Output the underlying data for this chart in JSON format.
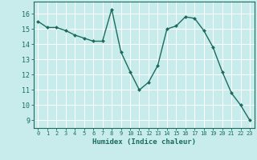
{
  "x": [
    0,
    1,
    2,
    3,
    4,
    5,
    6,
    7,
    8,
    9,
    10,
    11,
    12,
    13,
    14,
    15,
    16,
    17,
    18,
    19,
    20,
    21,
    22,
    23
  ],
  "y": [
    15.5,
    15.1,
    15.1,
    14.9,
    14.6,
    14.4,
    14.2,
    14.2,
    16.3,
    13.5,
    12.2,
    11.0,
    11.5,
    12.6,
    15.0,
    15.2,
    15.8,
    15.7,
    14.9,
    13.8,
    12.2,
    10.8,
    10.0,
    9.0
  ],
  "xlabel": "Humidex (Indice chaleur)",
  "ylabel": "",
  "xlim": [
    -0.5,
    23.5
  ],
  "ylim": [
    8.5,
    16.8
  ],
  "yticks": [
    9,
    10,
    11,
    12,
    13,
    14,
    15,
    16
  ],
  "xticks": [
    0,
    1,
    2,
    3,
    4,
    5,
    6,
    7,
    8,
    9,
    10,
    11,
    12,
    13,
    14,
    15,
    16,
    17,
    18,
    19,
    20,
    21,
    22,
    23
  ],
  "line_color": "#1a6b5e",
  "marker_color": "#1a6b5e",
  "bg_color": "#c8ecec",
  "grid_color": "#ffffff",
  "axis_color": "#2d7a6a"
}
